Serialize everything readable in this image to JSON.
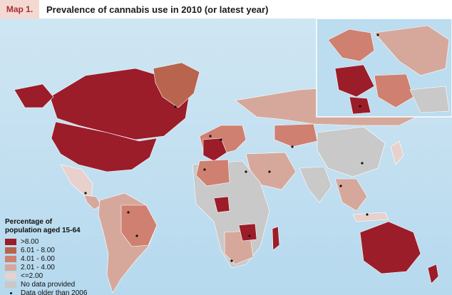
{
  "header": {
    "tag": "Map 1.",
    "title": "Prevalence of cannabis use in 2010 (or latest year)"
  },
  "legend": {
    "title_line1": "Percentage of",
    "title_line2": "population aged 15-64",
    "items": [
      {
        "label": ">8.00",
        "color": "#9b1d29"
      },
      {
        "label": "6.01 - 8.00",
        "color": "#b9644f"
      },
      {
        "label": "4.01 - 6.00",
        "color": "#cf8070"
      },
      {
        "label": "2.01 - 4.00",
        "color": "#d6a89c"
      },
      {
        "label": "<=2.00",
        "color": "#e8d1cc"
      },
      {
        "label": "No data provided",
        "color": "#c9c9c9"
      }
    ],
    "dot_label": "Data older than 2006"
  },
  "colors": {
    "ocean": "#bcdcef",
    "no_data": "#c9c9c9",
    "gt8": "#9b1d29",
    "r6_8": "#b9644f",
    "r4_6": "#cf8070",
    "r2_4": "#d6a89c",
    "le2": "#e8d1cc"
  }
}
